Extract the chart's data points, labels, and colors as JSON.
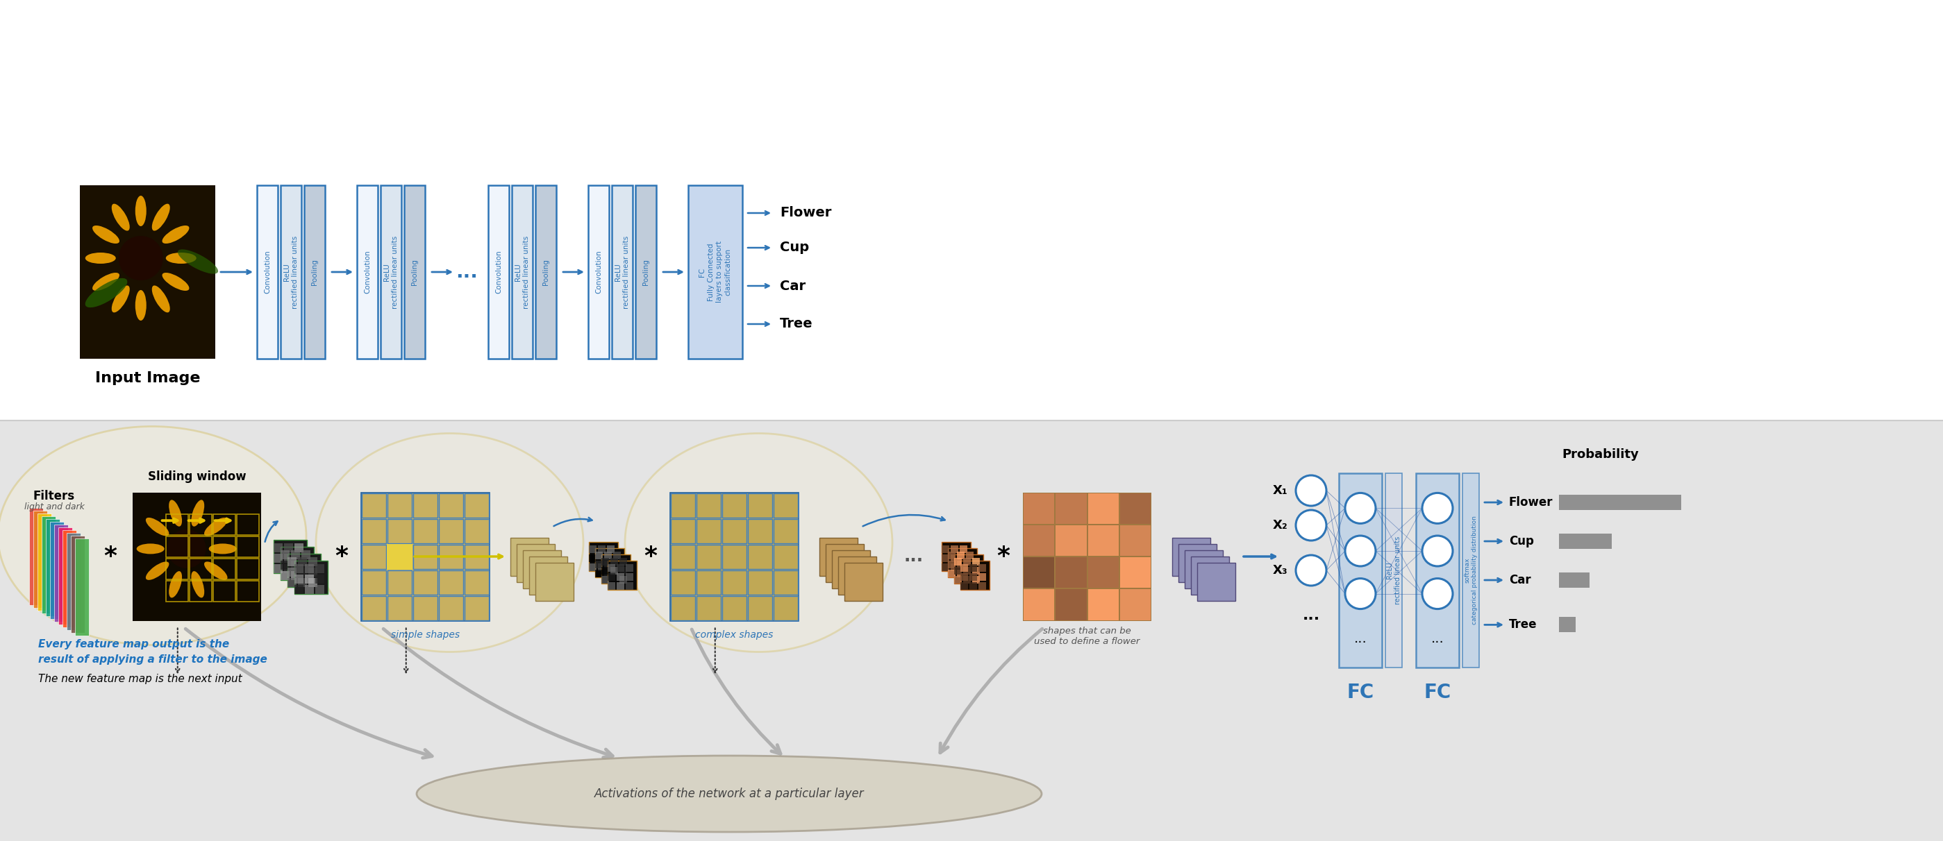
{
  "blue": "#2e75b6",
  "stroke": "#2e75b6",
  "face_conv": "#f0f5fc",
  "face_relu": "#dce6f0",
  "face_pool": "#c0ccda",
  "face_fc_top": "#c8d8ee",
  "face_nn_box": "#b8cfe8",
  "face_relu_box": "#d0d8e8",
  "face_softmax_box": "#b8cfe8",
  "label_input": "Input Image",
  "fc_text": "FC\nFully Connected\nlayers to support\nclassification",
  "output_classes": [
    "Flower",
    "Cup",
    "Car",
    "Tree"
  ],
  "x_inputs": [
    "X₁",
    "X₂",
    "X₃"
  ],
  "relu_vert": "ReLU\nrectified linear units",
  "softmax_vert": "softmax\ncategorical probability distribution",
  "fc1_label": "FC",
  "fc2_label": "FC",
  "prob_title": "Probability",
  "prob_classes": [
    "Flower",
    "Cup",
    "Car",
    "Tree"
  ],
  "prob_values": [
    0.88,
    0.38,
    0.22,
    0.12
  ],
  "text_feat1": "Every feature map output is the",
  "text_feat2": "result of applying a filter to the image",
  "text_feat3": "The new feature map is the next input",
  "text_ellipse": "Activations of the network at a particular layer",
  "label_input_img": "Input Image",
  "label_filters": "Filters",
  "label_filters2": "light and dark",
  "label_sliding": "Sliding window",
  "label_simple": "simple shapes",
  "label_complex": "complex shapes",
  "label_flower_shapes": "shapes that can be\nused to define a flower",
  "filter_colors": [
    "#e74c3c",
    "#e67e22",
    "#f1c40f",
    "#27ae60",
    "#16a085",
    "#2980b9",
    "#8e44ad",
    "#e91e63",
    "#ff5722",
    "#607d8b",
    "#795548",
    "#4caf50"
  ],
  "tan_fill": "#f2edd8",
  "tan_edge": "#d4c068",
  "fmap_tan": "#c8b878",
  "fmap_tan_e": "#907840",
  "fmap_brown": "#c09858",
  "fmap_brown_e": "#806030",
  "fmap_blue": "#9090b8",
  "fmap_blue_e": "#504878"
}
